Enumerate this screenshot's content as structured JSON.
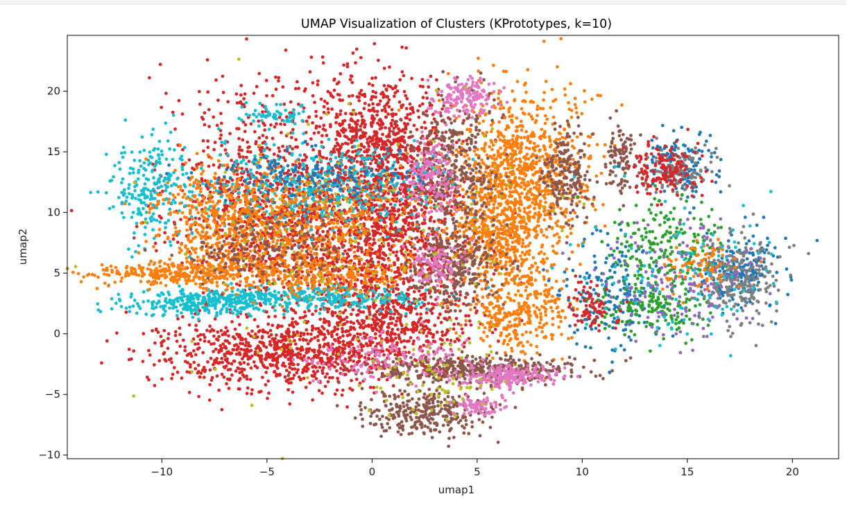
{
  "chart_data": {
    "type": "scatter",
    "title": "UMAP Visualization of Clusters (KPrototypes, k=10)",
    "xlabel": "umap1",
    "ylabel": "umap2",
    "xlim": [
      -14.5,
      22.2
    ],
    "ylim": [
      -10.3,
      24.6
    ],
    "xticks": [
      -10,
      -5,
      0,
      5,
      10,
      15,
      20
    ],
    "xtick_labels": [
      "−10",
      "−5",
      "0",
      "5",
      "10",
      "15",
      "20"
    ],
    "yticks": [
      -10,
      -5,
      0,
      5,
      10,
      15,
      20
    ],
    "ytick_labels": [
      "−10",
      "−5",
      "0",
      "5",
      "10",
      "15",
      "20"
    ],
    "grid": false,
    "legend": "none",
    "palette": [
      "#1f77b4",
      "#ff7f0e",
      "#2ca02c",
      "#d62728",
      "#9467bd",
      "#8c564b",
      "#e377c2",
      "#7f7f7f",
      "#bcbd22",
      "#17becf"
    ],
    "clusters": [
      {
        "color": "#d62728",
        "x": -4.5,
        "y": 12,
        "sx": 2.5,
        "sy": 4.5,
        "n": 900
      },
      {
        "color": "#d62728",
        "x": 0.5,
        "y": 15,
        "sx": 1.6,
        "sy": 3.5,
        "n": 800
      },
      {
        "color": "#d62728",
        "x": 1,
        "y": 9,
        "sx": 1.6,
        "sy": 3,
        "n": 500
      },
      {
        "color": "#d62728",
        "x": 1,
        "y": 1.5,
        "sx": 2,
        "sy": 2,
        "n": 500
      },
      {
        "color": "#d62728",
        "x": -4,
        "y": -1.5,
        "sx": 3.5,
        "sy": 1.5,
        "n": 900
      },
      {
        "color": "#d62728",
        "x": -2,
        "y": 7,
        "sx": 3,
        "sy": 2.5,
        "n": 500
      },
      {
        "color": "#17becf",
        "x": -10.5,
        "y": 12,
        "sx": 1,
        "sy": 2.2,
        "n": 220
      },
      {
        "color": "#17becf",
        "x": -8,
        "y": 2.5,
        "sx": 2,
        "sy": 0.5,
        "n": 280
      },
      {
        "color": "#17becf",
        "x": -3,
        "y": 3,
        "sx": 3,
        "sy": 0.5,
        "n": 320
      },
      {
        "color": "#17becf",
        "x": -2.5,
        "y": 12,
        "sx": 3,
        "sy": 1.8,
        "n": 500
      },
      {
        "color": "#17becf",
        "x": -4.8,
        "y": 18,
        "sx": 0.8,
        "sy": 0.5,
        "n": 60
      },
      {
        "color": "#ff7f0e",
        "x": -7,
        "y": 9,
        "sx": 1.6,
        "sy": 2.4,
        "n": 500
      },
      {
        "color": "#ff7f0e",
        "x": -9,
        "y": 5,
        "sx": 2.5,
        "sy": 0.5,
        "n": 300
      },
      {
        "color": "#ff7f0e",
        "x": -3,
        "y": 9,
        "sx": 2.5,
        "sy": 2,
        "n": 450
      },
      {
        "color": "#ff7f0e",
        "x": -2.5,
        "y": 5,
        "sx": 2.5,
        "sy": 0.8,
        "n": 300
      },
      {
        "color": "#ff7f0e",
        "x": 7,
        "y": 13,
        "sx": 1.6,
        "sy": 3.5,
        "n": 1000
      },
      {
        "color": "#ff7f0e",
        "x": 6,
        "y": 8,
        "sx": 1.2,
        "sy": 1.8,
        "n": 400
      },
      {
        "color": "#ff7f0e",
        "x": 7,
        "y": 2,
        "sx": 1.2,
        "sy": 2,
        "n": 350
      },
      {
        "color": "#8c564b",
        "x": 3.8,
        "y": 14,
        "sx": 1.1,
        "sy": 3,
        "n": 400
      },
      {
        "color": "#8c564b",
        "x": 4,
        "y": 5.5,
        "sx": 1.1,
        "sy": 1.6,
        "n": 300
      },
      {
        "color": "#8c564b",
        "x": 5,
        "y": -3,
        "sx": 2.5,
        "sy": 0.6,
        "n": 400
      },
      {
        "color": "#8c564b",
        "x": 2.5,
        "y": -6.5,
        "sx": 1.5,
        "sy": 1,
        "n": 300
      },
      {
        "color": "#8c564b",
        "x": 9.2,
        "y": 13,
        "sx": 0.6,
        "sy": 2,
        "n": 200
      },
      {
        "color": "#8c564b",
        "x": 11.8,
        "y": 14.5,
        "sx": 0.35,
        "sy": 1.5,
        "n": 100
      },
      {
        "color": "#8c564b",
        "x": -5,
        "y": 7,
        "sx": 2,
        "sy": 1.5,
        "n": 200
      },
      {
        "color": "#e377c2",
        "x": 4.5,
        "y": 19.5,
        "sx": 0.7,
        "sy": 0.8,
        "n": 150
      },
      {
        "color": "#e377c2",
        "x": 2.8,
        "y": 13,
        "sx": 0.6,
        "sy": 1.5,
        "n": 150
      },
      {
        "color": "#e377c2",
        "x": 6.5,
        "y": -3.5,
        "sx": 1.2,
        "sy": 0.5,
        "n": 200
      },
      {
        "color": "#e377c2",
        "x": 5,
        "y": -6,
        "sx": 0.6,
        "sy": 0.4,
        "n": 80
      },
      {
        "color": "#e377c2",
        "x": 3,
        "y": 5.5,
        "sx": 0.6,
        "sy": 1,
        "n": 100
      },
      {
        "color": "#e377c2",
        "x": 0.5,
        "y": -2,
        "sx": 2,
        "sy": 1,
        "n": 120
      },
      {
        "color": "#1f77b4",
        "x": 14.5,
        "y": 14,
        "sx": 0.8,
        "sy": 1.2,
        "n": 150
      },
      {
        "color": "#1f77b4",
        "x": 11.5,
        "y": 3,
        "sx": 1.2,
        "sy": 2.5,
        "n": 200
      },
      {
        "color": "#1f77b4",
        "x": 17.5,
        "y": 5,
        "sx": 1,
        "sy": 1.5,
        "n": 200
      },
      {
        "color": "#1f77b4",
        "x": -3,
        "y": 13,
        "sx": 2.5,
        "sy": 1,
        "n": 150
      },
      {
        "color": "#2ca02c",
        "x": 14,
        "y": 7,
        "sx": 1.2,
        "sy": 2,
        "n": 200
      },
      {
        "color": "#2ca02c",
        "x": 13,
        "y": 2,
        "sx": 1.5,
        "sy": 1.2,
        "n": 150
      },
      {
        "color": "#7f7f7f",
        "x": 17.5,
        "y": 4.5,
        "sx": 1,
        "sy": 1.8,
        "n": 250
      },
      {
        "color": "#7f7f7f",
        "x": 14.5,
        "y": 13.5,
        "sx": 0.8,
        "sy": 1,
        "n": 100
      },
      {
        "color": "#9467bd",
        "x": 15,
        "y": 4,
        "sx": 2,
        "sy": 2.5,
        "n": 150
      },
      {
        "color": "#d62728",
        "x": 14,
        "y": 13.5,
        "sx": 0.8,
        "sy": 1.2,
        "n": 150
      },
      {
        "color": "#d62728",
        "x": 10.5,
        "y": 2,
        "sx": 0.6,
        "sy": 1,
        "n": 80
      },
      {
        "color": "#ff7f0e",
        "x": 15.5,
        "y": 5.5,
        "sx": 0.8,
        "sy": 1,
        "n": 80
      },
      {
        "color": "#bcbd22",
        "x": -1,
        "y": 6,
        "sx": 4,
        "sy": 6,
        "n": 180
      },
      {
        "color": "#bcbd22",
        "x": 3,
        "y": -4,
        "sx": 1.5,
        "sy": 1.5,
        "n": 60
      },
      {
        "color": "#17becf",
        "x": 15,
        "y": 5,
        "sx": 2.5,
        "sy": 3,
        "n": 100
      }
    ]
  }
}
